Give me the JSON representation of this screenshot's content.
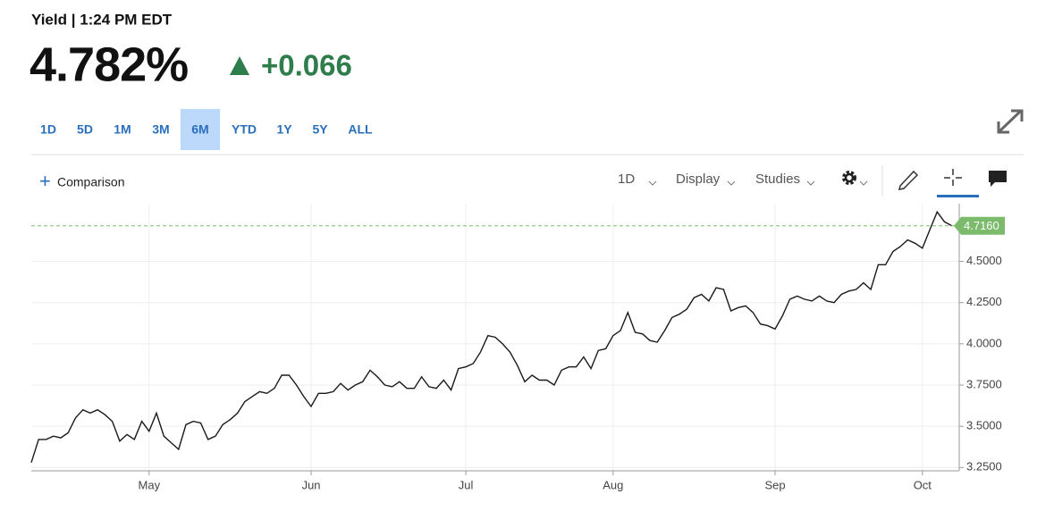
{
  "header": {
    "title": "Yield | 1:24 PM EDT",
    "price": "4.782%",
    "change": "+0.066"
  },
  "range_tabs": {
    "items": [
      "1D",
      "5D",
      "1M",
      "3M",
      "6M",
      "YTD",
      "1Y",
      "5Y",
      "ALL"
    ],
    "selected": 4
  },
  "toolbar": {
    "comparison": "Comparison",
    "interval": "1D",
    "display": "Display",
    "studies": "Studies"
  },
  "chart_data": {
    "type": "line",
    "color": "#1a1a1a",
    "values": [
      3.28,
      3.42,
      3.42,
      3.44,
      3.43,
      3.46,
      3.55,
      3.6,
      3.58,
      3.6,
      3.57,
      3.53,
      3.41,
      3.45,
      3.42,
      3.53,
      3.47,
      3.58,
      3.44,
      3.4,
      3.36,
      3.51,
      3.53,
      3.52,
      3.42,
      3.44,
      3.51,
      3.54,
      3.58,
      3.65,
      3.68,
      3.71,
      3.7,
      3.73,
      3.81,
      3.81,
      3.75,
      3.68,
      3.62,
      3.7,
      3.7,
      3.71,
      3.76,
      3.72,
      3.75,
      3.77,
      3.84,
      3.8,
      3.75,
      3.74,
      3.77,
      3.73,
      3.73,
      3.8,
      3.74,
      3.73,
      3.78,
      3.72,
      3.85,
      3.86,
      3.88,
      3.95,
      4.05,
      4.04,
      4.0,
      3.95,
      3.87,
      3.77,
      3.81,
      3.78,
      3.78,
      3.75,
      3.84,
      3.86,
      3.86,
      3.92,
      3.85,
      3.96,
      3.97,
      4.05,
      4.08,
      4.19,
      4.07,
      4.06,
      4.02,
      4.01,
      4.08,
      4.16,
      4.18,
      4.21,
      4.28,
      4.3,
      4.26,
      4.34,
      4.33,
      4.2,
      4.22,
      4.23,
      4.19,
      4.12,
      4.11,
      4.09,
      4.17,
      4.27,
      4.29,
      4.27,
      4.26,
      4.29,
      4.26,
      4.25,
      4.3,
      4.32,
      4.33,
      4.37,
      4.33,
      4.48,
      4.48,
      4.56,
      4.59,
      4.63,
      4.61,
      4.58,
      4.69,
      4.8,
      4.74,
      4.716
    ],
    "xlim": [
      0,
      126
    ],
    "xticks": [
      {
        "value": 16,
        "label": "May"
      },
      {
        "value": 38,
        "label": "Jun"
      },
      {
        "value": 59,
        "label": "Jul"
      },
      {
        "value": 79,
        "label": "Aug"
      },
      {
        "value": 101,
        "label": "Sep"
      },
      {
        "value": 121,
        "label": "Oct"
      }
    ],
    "ylim": [
      3.23,
      4.85
    ],
    "yticks": [
      {
        "value": 3.25,
        "label": "3.2500"
      },
      {
        "value": 3.5,
        "label": "3.5000"
      },
      {
        "value": 3.75,
        "label": "3.7500"
      },
      {
        "value": 4.0,
        "label": "4.0000"
      },
      {
        "value": 4.25,
        "label": "4.2500"
      },
      {
        "value": 4.5,
        "label": "4.5000"
      }
    ],
    "grid": true,
    "reference_line": {
      "value": 4.716,
      "label": "4.7160",
      "color": "#7cbb6b"
    }
  }
}
